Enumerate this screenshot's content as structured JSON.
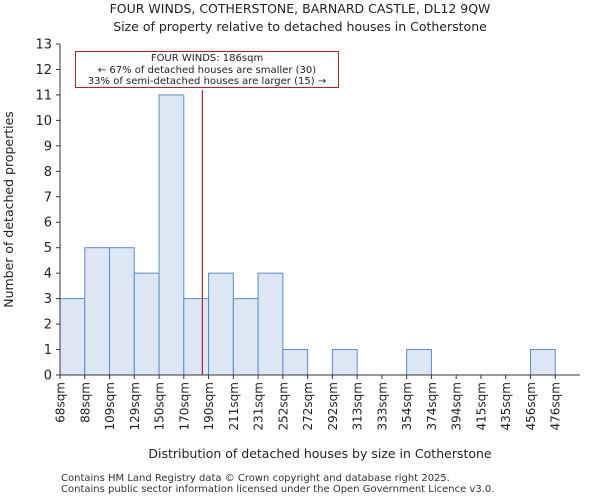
{
  "header": {
    "title": "FOUR WINDS, COTHERSTONE, BARNARD CASTLE, DL12 9QW",
    "subtitle": "Size of property relative to detached houses in Cotherstone"
  },
  "chart_data": {
    "type": "bar",
    "title": "FOUR WINDS, COTHERSTONE, BARNARD CASTLE, DL12 9QW",
    "subtitle": "Size of property relative to detached houses in Cotherstone",
    "xlabel": "Distribution of detached houses by size in Cotherstone",
    "ylabel": "Number of detached properties",
    "categories": [
      "68sqm",
      "88sqm",
      "109sqm",
      "129sqm",
      "150sqm",
      "170sqm",
      "190sqm",
      "211sqm",
      "231sqm",
      "252sqm",
      "272sqm",
      "292sqm",
      "313sqm",
      "333sqm",
      "354sqm",
      "374sqm",
      "394sqm",
      "415sqm",
      "435sqm",
      "456sqm",
      "476sqm"
    ],
    "values": [
      3,
      5,
      5,
      4,
      11,
      3,
      4,
      3,
      4,
      1,
      0,
      1,
      0,
      0,
      1,
      0,
      0,
      0,
      0,
      1,
      0
    ],
    "ylim": [
      0,
      13
    ],
    "yticks": [
      0,
      1,
      2,
      3,
      4,
      5,
      6,
      7,
      8,
      9,
      10,
      11,
      12,
      13
    ],
    "marker_bin_position": 5.75,
    "bar_color": "#dce6f5",
    "bar_edge_color": "#5b8bd0",
    "marker_color": "#b22222",
    "grid": false
  },
  "annotation": {
    "line1": "FOUR WINDS: 186sqm",
    "line2": "← 67% of detached houses are smaller (30)",
    "line3": "33% of semi-detached houses are larger (15) →"
  },
  "footer": {
    "line1": "Contains HM Land Registry data © Crown copyright and database right 2025.",
    "line2": "Contains public sector information licensed under the Open Government Licence v3.0."
  }
}
